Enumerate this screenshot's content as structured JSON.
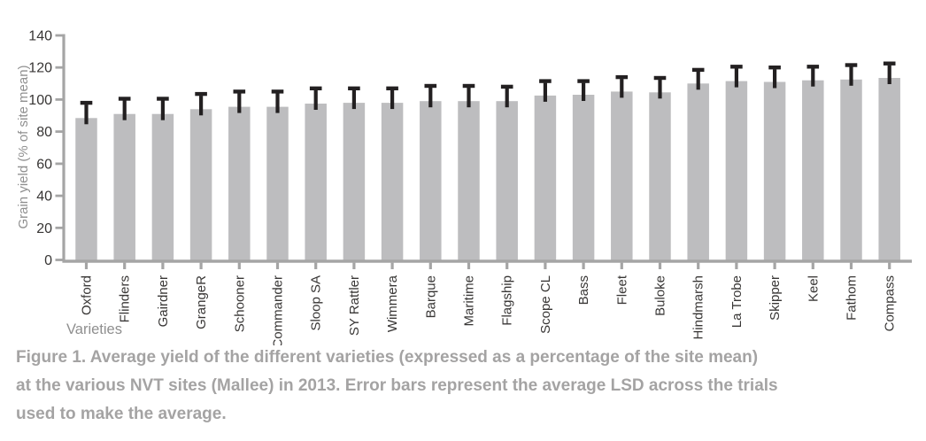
{
  "figure": {
    "caption_lines": [
      "Figure 1. Average yield of the different varieties (expressed as a percentage of the site mean)",
      "at the various NVT sites (Mallee) in 2013. Error bars represent the average LSD across the trials",
      "used to make the average."
    ]
  },
  "chart_data": {
    "type": "bar",
    "title": "",
    "xlabel": "Varieties",
    "ylabel": "Grain yield (% of site mean)",
    "ylim": [
      0,
      140
    ],
    "yticks": [
      0,
      20,
      40,
      60,
      80,
      100,
      120,
      140
    ],
    "grid": false,
    "legend": "none",
    "bar_color": "#bdbdbf",
    "error_bar_color": "#232021",
    "axis_color": "#a5a5a5",
    "tick_label_color": "#383635",
    "muted_label_color": "#8f8f8f",
    "caption_color": "#a4a3a3",
    "categories": [
      "Oxford",
      "Flinders",
      "Gairdner",
      "GrangeR",
      "Schooner",
      "Commander",
      "Sloop SA",
      "SY Rattler",
      "Wimmera",
      "Barque",
      "Maritime",
      "Flagship",
      "Scope CL",
      "Bass",
      "Fleet",
      "Buloke",
      "Hindmarsh",
      "La Trobe",
      "Skipper",
      "Keel",
      "Fathom",
      "Compass"
    ],
    "values": [
      88.5,
      91,
      91,
      94,
      95.5,
      95.5,
      97.5,
      98,
      98,
      99,
      99,
      99,
      102.5,
      103,
      105,
      104.5,
      110,
      111.5,
      111,
      112,
      112.5,
      113.5
    ],
    "error_plus": [
      9.5,
      9.5,
      9.5,
      9.5,
      9.5,
      9.5,
      9.5,
      9,
      9,
      9.5,
      9.5,
      9,
      9,
      8.5,
      9,
      9,
      8.5,
      9,
      9,
      8.5,
      9,
      9
    ]
  }
}
